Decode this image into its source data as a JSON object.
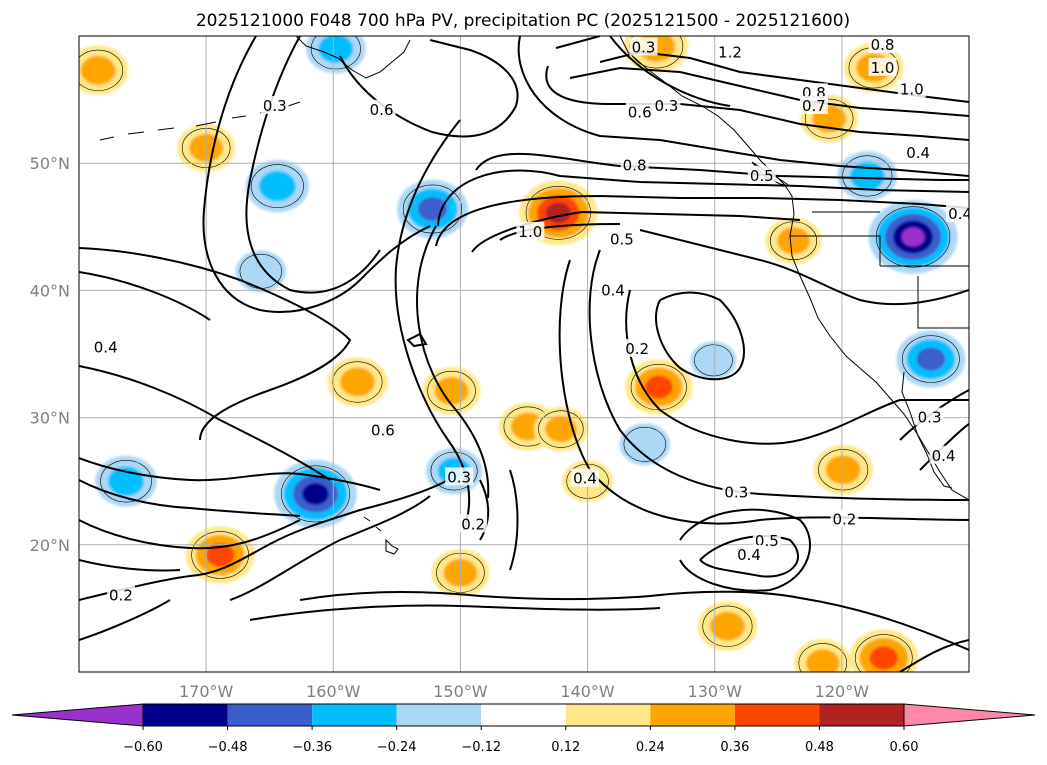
{
  "chart_data": {
    "type": "heatmap",
    "title": "2025121000 F048 700 hPa PV, precipitation PC (2025121500 - 2025121600)",
    "map": {
      "lon_range": [
        -180,
        -110
      ],
      "lat_range": [
        10,
        60
      ],
      "lon_ticks": [
        -170,
        -160,
        -150,
        -140,
        -130,
        -120
      ],
      "lon_tick_labels": [
        "170°W",
        "160°W",
        "150°W",
        "140°W",
        "130°W",
        "120°W"
      ],
      "lat_ticks": [
        20,
        30,
        40,
        50
      ],
      "lat_tick_labels": [
        "20°N",
        "30°N",
        "40°N",
        "50°N"
      ],
      "grid": true
    },
    "colorbar": {
      "levels": [
        -0.6,
        -0.48,
        -0.36,
        -0.24,
        -0.12,
        0.12,
        0.24,
        0.36,
        0.48,
        0.6
      ],
      "tick_labels": [
        "−0.60",
        "−0.48",
        "−0.36",
        "−0.24",
        "−0.12",
        "0.12",
        "0.24",
        "0.36",
        "0.48",
        "0.60"
      ],
      "colors": [
        "#9932cc",
        "#00008b",
        "#3a5fcd",
        "#00bfff",
        "#add8f5",
        "#ffffff",
        "#ffe88a",
        "#ffa500",
        "#ff4500",
        "#b22222",
        "#ff88aa"
      ],
      "extend": "both"
    },
    "contours": {
      "field": "700 hPa PV",
      "levels": [
        0.2,
        0.3,
        0.4,
        0.5,
        0.6,
        0.7,
        0.8,
        1.0,
        1.2
      ],
      "labels": [
        {
          "text": "0.8",
          "lon": -116.8,
          "lat": 59.3
        },
        {
          "text": "1.0",
          "lon": -116.8,
          "lat": 57.5
        },
        {
          "text": "1.2",
          "lon": -128.8,
          "lat": 58.7
        },
        {
          "text": "1.0",
          "lon": -114.5,
          "lat": 55.8
        },
        {
          "text": "0.8",
          "lon": -122.2,
          "lat": 55.5
        },
        {
          "text": "0.7",
          "lon": -122.2,
          "lat": 54.5
        },
        {
          "text": "0.6",
          "lon": -135.9,
          "lat": 54.0
        },
        {
          "text": "0.3",
          "lon": -133.8,
          "lat": 54.5
        },
        {
          "text": "0.4",
          "lon": -114.0,
          "lat": 50.8
        },
        {
          "text": "0.3",
          "lon": -135.6,
          "lat": 59.1
        },
        {
          "text": "0.8",
          "lon": -136.3,
          "lat": 49.8
        },
        {
          "text": "0.5",
          "lon": -126.3,
          "lat": 49.0
        },
        {
          "text": "0.5",
          "lon": -137.3,
          "lat": 44.0
        },
        {
          "text": "0.4",
          "lon": -138.0,
          "lat": 40.0
        },
        {
          "text": "1.0",
          "lon": -144.5,
          "lat": 44.6
        },
        {
          "text": "0.6",
          "lon": -156.2,
          "lat": 54.2
        },
        {
          "text": "0.3",
          "lon": -164.6,
          "lat": 54.5
        },
        {
          "text": "0.4",
          "lon": -110.7,
          "lat": 46.0
        },
        {
          "text": "0.4",
          "lon": -177.9,
          "lat": 35.5
        },
        {
          "text": "0.6",
          "lon": -156.1,
          "lat": 29.0
        },
        {
          "text": "0.2",
          "lon": -136.1,
          "lat": 35.4
        },
        {
          "text": "0.3",
          "lon": -150.1,
          "lat": 25.3
        },
        {
          "text": "0.2",
          "lon": -149.0,
          "lat": 21.6
        },
        {
          "text": "0.4",
          "lon": -140.2,
          "lat": 25.2
        },
        {
          "text": "0.3",
          "lon": -128.3,
          "lat": 24.1
        },
        {
          "text": "0.5",
          "lon": -125.9,
          "lat": 20.3
        },
        {
          "text": "0.4",
          "lon": -127.3,
          "lat": 19.2
        },
        {
          "text": "0.2",
          "lon": -119.8,
          "lat": 22.0
        },
        {
          "text": "0.2",
          "lon": -176.7,
          "lat": 16.0
        },
        {
          "text": "0.3",
          "lon": -113.1,
          "lat": 30.0
        },
        {
          "text": "0.4",
          "lon": -112.0,
          "lat": 27.0
        }
      ]
    },
    "shading_field": "precipitation PC",
    "anomalies": [
      {
        "lon": -142.3,
        "lat": 46.1,
        "value": 0.5
      },
      {
        "lon": -134.6,
        "lat": 59.2,
        "value": 0.35
      },
      {
        "lon": -117.5,
        "lat": 57.5,
        "value": 0.3
      },
      {
        "lon": -121.0,
        "lat": 53.5,
        "value": 0.28
      },
      {
        "lon": -178.5,
        "lat": 57.3,
        "value": 0.3
      },
      {
        "lon": -170.0,
        "lat": 51.2,
        "value": 0.28
      },
      {
        "lon": -168.9,
        "lat": 19.2,
        "value": 0.4
      },
      {
        "lon": -158.1,
        "lat": 32.8,
        "value": 0.3
      },
      {
        "lon": -150.7,
        "lat": 32.1,
        "value": 0.28
      },
      {
        "lon": -144.7,
        "lat": 29.3,
        "value": 0.28
      },
      {
        "lon": -142.1,
        "lat": 29.1,
        "value": 0.24
      },
      {
        "lon": -134.4,
        "lat": 32.4,
        "value": 0.38
      },
      {
        "lon": -140.0,
        "lat": 25.0,
        "value": 0.2
      },
      {
        "lon": -129.0,
        "lat": 13.6,
        "value": 0.3
      },
      {
        "lon": -150.0,
        "lat": 17.8,
        "value": 0.28
      },
      {
        "lon": -119.9,
        "lat": 25.9,
        "value": 0.3
      },
      {
        "lon": -123.8,
        "lat": 43.9,
        "value": 0.26
      },
      {
        "lon": -116.7,
        "lat": 11.1,
        "value": 0.4
      },
      {
        "lon": -121.5,
        "lat": 10.7,
        "value": 0.28
      },
      {
        "lon": -114.4,
        "lat": 44.2,
        "value": -0.62
      },
      {
        "lon": -113.0,
        "lat": 34.6,
        "value": -0.4
      },
      {
        "lon": -161.4,
        "lat": 24.0,
        "value": -0.55
      },
      {
        "lon": -164.4,
        "lat": 48.2,
        "value": -0.34
      },
      {
        "lon": -152.2,
        "lat": 46.4,
        "value": -0.42
      },
      {
        "lon": -176.3,
        "lat": 25.0,
        "value": -0.32
      },
      {
        "lon": -118.0,
        "lat": 49.0,
        "value": -0.3
      },
      {
        "lon": -159.8,
        "lat": 59.0,
        "value": -0.3
      },
      {
        "lon": -150.5,
        "lat": 25.8,
        "value": -0.26
      },
      {
        "lon": -135.5,
        "lat": 27.9,
        "value": -0.2
      },
      {
        "lon": -130.1,
        "lat": 34.5,
        "value": -0.15
      },
      {
        "lon": -165.7,
        "lat": 41.5,
        "value": -0.2
      }
    ]
  }
}
